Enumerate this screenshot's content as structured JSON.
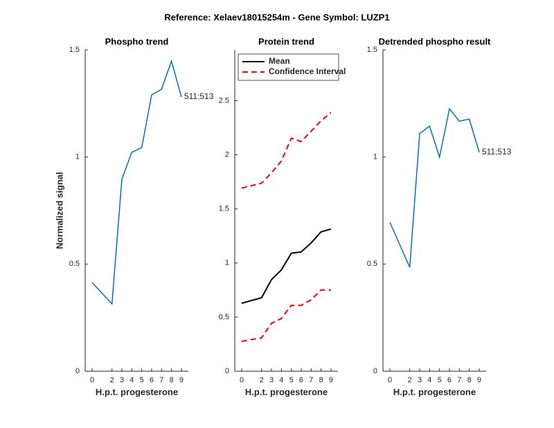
{
  "title": "Reference:  Xelaev18015254m - Gene Symbol:  LUZP1",
  "chart_data": [
    {
      "type": "line",
      "title": "Phospho trend",
      "xlabel": "H.p.t. progesterone",
      "ylabel": "Normalized signal",
      "x": [
        0,
        2,
        3,
        4,
        5,
        6,
        7,
        8,
        9
      ],
      "series": [
        {
          "color": "#0072bd",
          "values": [
            0.414,
            0.314,
            0.896,
            1.022,
            1.044,
            1.29,
            1.316,
            1.448,
            1.28
          ]
        }
      ],
      "annotation": "511;513",
      "xlim": [
        -0.7,
        9.7
      ],
      "ylim": [
        0,
        1.5
      ],
      "xticks": [
        0,
        2,
        3,
        4,
        5,
        6,
        7,
        8,
        9
      ],
      "yticks": [
        0,
        0.5,
        1,
        1.5
      ]
    },
    {
      "type": "line",
      "title": "Protein trend",
      "xlabel": "H.p.t. progesterone",
      "x": [
        0,
        2,
        3,
        4,
        5,
        6,
        7,
        8,
        9
      ],
      "series": [
        {
          "name": "Mean",
          "color": "#000000",
          "values": [
            0.628,
            0.679,
            0.846,
            0.936,
            1.09,
            1.103,
            1.186,
            1.288,
            1.314
          ]
        },
        {
          "name": "Confidence Interval",
          "color": "#ff0000",
          "dashed": true,
          "upper": [
            1.692,
            1.737,
            1.833,
            1.942,
            2.154,
            2.122,
            2.218,
            2.314,
            2.391
          ],
          "lower": [
            0.276,
            0.308,
            0.442,
            0.487,
            0.609,
            0.609,
            0.66,
            0.75,
            0.75
          ]
        }
      ],
      "legend": "upper left",
      "xlim": [
        -0.7,
        9.7
      ],
      "ylim": [
        0,
        2.97
      ],
      "xticks": [
        0,
        2,
        3,
        4,
        5,
        6,
        7,
        8,
        9
      ],
      "yticks": [
        0,
        0.5,
        1,
        1.5,
        2,
        2.5
      ]
    },
    {
      "type": "line",
      "title": "Detrended phospho result",
      "xlabel": "H.p.t. progesterone",
      "x": [
        0,
        2,
        3,
        4,
        5,
        6,
        7,
        8,
        9
      ],
      "series": [
        {
          "color": "#0072bd",
          "values": [
            0.695,
            0.485,
            1.109,
            1.144,
            0.999,
            1.225,
            1.167,
            1.177,
            1.022
          ]
        }
      ],
      "annotation": "511;513",
      "xlim": [
        -0.7,
        9.7
      ],
      "ylim": [
        0,
        1.5
      ],
      "xticks": [
        0,
        2,
        3,
        4,
        5,
        6,
        7,
        8,
        9
      ],
      "yticks": [
        0,
        0.5,
        1,
        1.5
      ]
    }
  ]
}
